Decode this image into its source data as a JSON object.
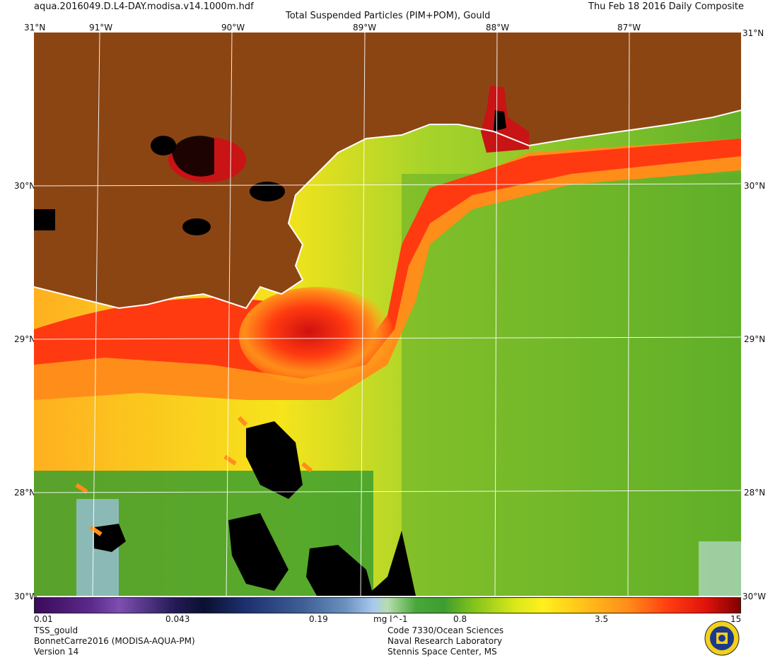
{
  "header": {
    "filename": "aqua.2016049.D.L4-DAY.modisa.v14.1000m.hdf",
    "product": "Total Suspended Particles (PIM+POM), Gould",
    "date": "Thu Feb 18 2016 Daily Composite"
  },
  "map": {
    "lon_labels": [
      "91°W",
      "90°W",
      "89°W",
      "88°W",
      "87°W"
    ],
    "lat_labels": [
      "30°N",
      "29°N",
      "28°N"
    ],
    "corner_top": "31°N",
    "corner_bottom": "30°W",
    "colors": {
      "land": "#8b4513",
      "no_data": "#000000",
      "coastline": "#ffffff",
      "graticule": "#ffffff"
    }
  },
  "colorbar": {
    "tick_labels": [
      "0.01",
      "0.043",
      "0.19",
      "0.8",
      "3.5",
      "15"
    ],
    "units": "mg l^-1",
    "scale": "log",
    "range": [
      0.01,
      15
    ]
  },
  "footer": {
    "left": [
      "TSS_gould",
      "BonnetCarre2016 (MODISA-AQUA-PM)",
      "Version 14"
    ],
    "right": [
      "Code 7330/Ocean Sciences",
      "Naval Research Laboratory",
      "Stennis Space Center, MS"
    ]
  }
}
